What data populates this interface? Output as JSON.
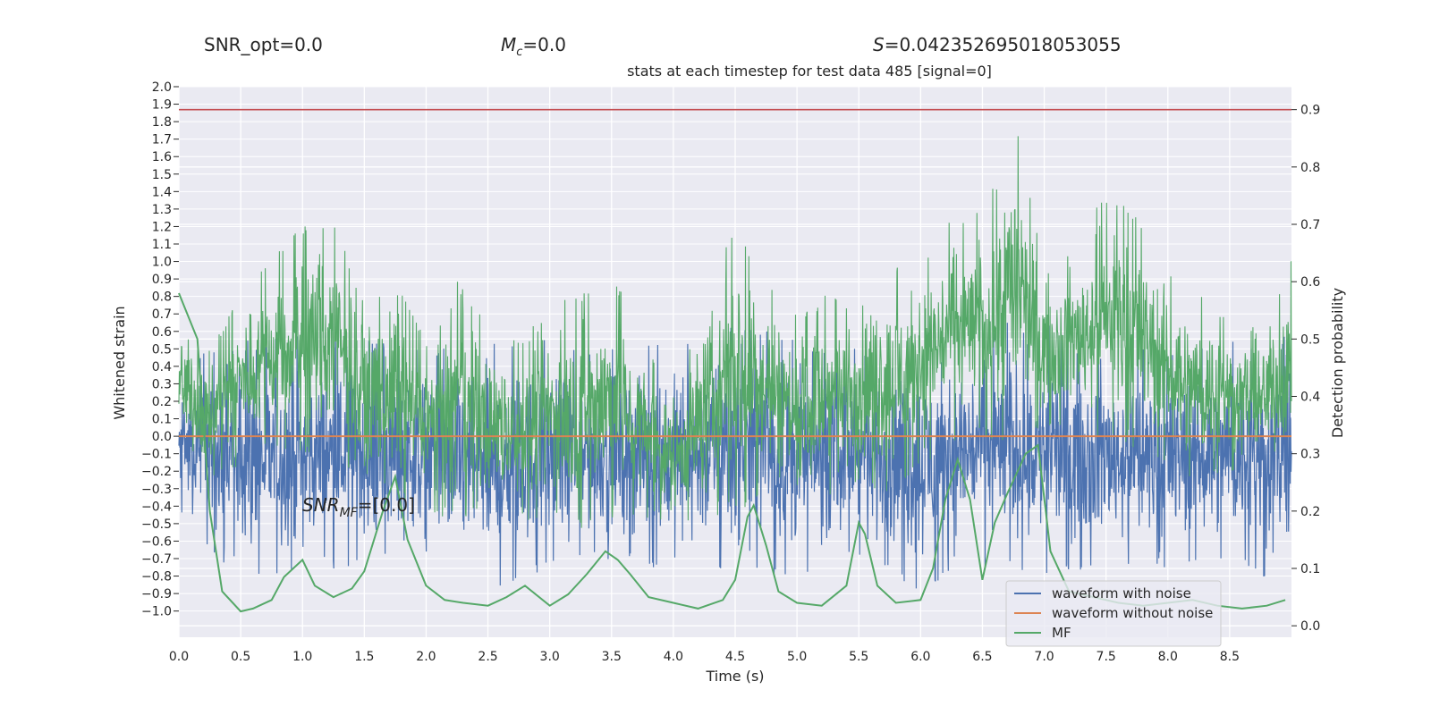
{
  "header": {
    "snr_opt": "SNR_opt=0.0",
    "mc_value": "=0.0",
    "s_value": "=0.042352695018053055"
  },
  "chart_data": {
    "type": "line",
    "title": "stats at each timestep for test data 485 [signal=0]",
    "xlabel": "Time (s)",
    "ylabel_left": "Whitened strain",
    "ylabel_right": "Detection probability",
    "xlim": [
      0.0,
      9.0
    ],
    "ylim_left": [
      -1.15,
      2.0
    ],
    "ylim_right": [
      -0.02,
      0.94
    ],
    "x_ticks": [
      0.0,
      0.5,
      1.0,
      1.5,
      2.0,
      2.5,
      3.0,
      3.5,
      4.0,
      4.5,
      5.0,
      5.5,
      6.0,
      6.5,
      7.0,
      7.5,
      8.0,
      8.5
    ],
    "y_ticks_left": [
      -1.0,
      -0.9,
      -0.8,
      -0.7,
      -0.6,
      -0.5,
      -0.4,
      -0.3,
      -0.2,
      -0.1,
      0.0,
      0.1,
      0.2,
      0.3,
      0.4,
      0.5,
      0.6,
      0.7,
      0.8,
      0.9,
      1.0,
      1.1,
      1.2,
      1.3,
      1.4,
      1.5,
      1.6,
      1.7,
      1.8,
      1.9,
      2.0
    ],
    "y_ticks_right": [
      0.0,
      0.1,
      0.2,
      0.3,
      0.4,
      0.5,
      0.6,
      0.7,
      0.8,
      0.9
    ],
    "threshold": 0.9,
    "annotation": "=[0.0]",
    "legend_position": "bottom-right",
    "grid": true,
    "colors": {
      "background": "#eaeaf2",
      "waveform_with_noise": "#4c72b0",
      "waveform_without_noise": "#dd8452",
      "detection_probability": "#55a868",
      "mf": "#55a868",
      "threshold": "#c44e52"
    },
    "series": [
      {
        "name": "waveform with noise",
        "axis": "left",
        "envelope": {
          "x": [
            0.0,
            0.5,
            1.0,
            1.5,
            2.0,
            2.5,
            3.0,
            3.5,
            4.0,
            4.5,
            5.0,
            5.5,
            6.0,
            6.5,
            7.0,
            7.5,
            8.0,
            8.5,
            9.0
          ],
          "upper": [
            0.45,
            0.55,
            0.6,
            0.55,
            0.5,
            0.6,
            0.55,
            0.5,
            0.55,
            0.7,
            0.55,
            0.5,
            0.6,
            0.65,
            0.65,
            0.55,
            0.5,
            0.55,
            0.6
          ],
          "lower": [
            -0.45,
            -0.85,
            -0.8,
            -0.75,
            -0.7,
            -0.95,
            -0.75,
            -0.7,
            -0.8,
            -0.8,
            -0.8,
            -0.7,
            -0.9,
            -0.75,
            -0.8,
            -0.75,
            -0.75,
            -0.7,
            -0.9
          ]
        }
      },
      {
        "name": "waveform without noise",
        "axis": "left",
        "x": [
          0.0,
          9.0
        ],
        "y": [
          0.0,
          0.0
        ]
      },
      {
        "name": "",
        "axis": "right",
        "role": "detection probability",
        "envelope": {
          "x": [
            0.0,
            0.25,
            0.5,
            0.75,
            1.0,
            1.25,
            1.5,
            1.75,
            2.0,
            2.25,
            2.5,
            2.75,
            3.0,
            3.25,
            3.5,
            3.75,
            4.0,
            4.25,
            4.5,
            4.75,
            5.0,
            5.25,
            5.5,
            5.75,
            6.0,
            6.25,
            6.5,
            6.75,
            7.0,
            7.25,
            7.5,
            7.75,
            8.0,
            8.25,
            8.5,
            8.75,
            9.0
          ],
          "upper": [
            0.55,
            0.48,
            0.58,
            0.64,
            0.7,
            0.72,
            0.56,
            0.6,
            0.5,
            0.61,
            0.52,
            0.5,
            0.56,
            0.58,
            0.62,
            0.5,
            0.4,
            0.58,
            0.7,
            0.62,
            0.54,
            0.58,
            0.6,
            0.62,
            0.64,
            0.72,
            0.72,
            0.9,
            0.62,
            0.66,
            0.76,
            0.72,
            0.62,
            0.58,
            0.54,
            0.52,
            0.64
          ],
          "lower": [
            0.3,
            0.25,
            0.28,
            0.31,
            0.3,
            0.28,
            0.26,
            0.22,
            0.2,
            0.18,
            0.19,
            0.17,
            0.18,
            0.17,
            0.18,
            0.19,
            0.18,
            0.17,
            0.2,
            0.22,
            0.2,
            0.22,
            0.24,
            0.23,
            0.27,
            0.32,
            0.33,
            0.3,
            0.35,
            0.34,
            0.32,
            0.31,
            0.28,
            0.25,
            0.27,
            0.26,
            0.28
          ]
        }
      },
      {
        "name": "MF",
        "axis": "right",
        "x": [
          0.0,
          0.15,
          0.25,
          0.35,
          0.5,
          0.6,
          0.75,
          0.85,
          1.0,
          1.1,
          1.25,
          1.4,
          1.5,
          1.65,
          1.75,
          1.85,
          2.0,
          2.15,
          2.3,
          2.5,
          2.65,
          2.8,
          3.0,
          3.15,
          3.3,
          3.45,
          3.55,
          3.65,
          3.8,
          4.0,
          4.2,
          4.4,
          4.5,
          4.6,
          4.65,
          4.75,
          4.85,
          5.0,
          5.2,
          5.4,
          5.5,
          5.55,
          5.65,
          5.8,
          6.0,
          6.1,
          6.2,
          6.3,
          6.4,
          6.5,
          6.6,
          6.7,
          6.85,
          6.95,
          7.05,
          7.2,
          7.4,
          7.6,
          7.8,
          8.0,
          8.2,
          8.4,
          8.6,
          8.8,
          8.95
        ],
        "y": [
          0.58,
          0.5,
          0.2,
          0.06,
          0.025,
          0.03,
          0.045,
          0.085,
          0.115,
          0.07,
          0.05,
          0.065,
          0.095,
          0.2,
          0.26,
          0.15,
          0.07,
          0.045,
          0.04,
          0.035,
          0.05,
          0.07,
          0.035,
          0.055,
          0.09,
          0.13,
          0.115,
          0.09,
          0.05,
          0.04,
          0.03,
          0.045,
          0.08,
          0.19,
          0.21,
          0.14,
          0.06,
          0.04,
          0.035,
          0.07,
          0.18,
          0.16,
          0.07,
          0.04,
          0.045,
          0.1,
          0.22,
          0.29,
          0.22,
          0.08,
          0.18,
          0.23,
          0.3,
          0.315,
          0.13,
          0.06,
          0.05,
          0.04,
          0.035,
          0.04,
          0.045,
          0.035,
          0.03,
          0.035,
          0.045
        ]
      }
    ]
  }
}
